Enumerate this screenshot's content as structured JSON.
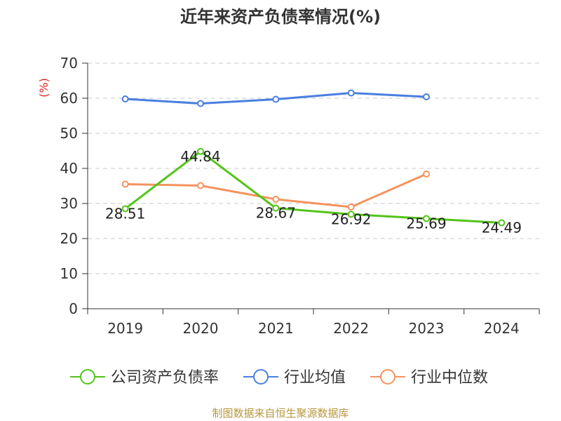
{
  "chart_data": {
    "type": "line",
    "title": "近年来资产负债率情况(%)",
    "ylabel": "(%)",
    "xlabel": "",
    "ylim": [
      0,
      70
    ],
    "yticks": [
      0,
      10,
      20,
      30,
      40,
      50,
      60,
      70
    ],
    "categories": [
      "2019",
      "2020",
      "2021",
      "2022",
      "2023",
      "2024"
    ],
    "grid": "horizontal dashed",
    "legend_position": "bottom",
    "series": [
      {
        "name": "公司资产负债率",
        "color": "#52c41a",
        "values": [
          28.51,
          44.84,
          28.67,
          26.92,
          25.69,
          24.49
        ],
        "show_labels": true
      },
      {
        "name": "行业均值",
        "color": "#4a7fe0",
        "values": [
          59.8,
          58.5,
          59.7,
          61.5,
          60.4,
          null
        ],
        "show_labels": false
      },
      {
        "name": "行业中位数",
        "color": "#f4935f",
        "values": [
          35.5,
          35.1,
          31.2,
          29.0,
          38.4,
          null
        ],
        "show_labels": false
      }
    ]
  },
  "source_text": "制图数据来自恒生聚源数据库"
}
